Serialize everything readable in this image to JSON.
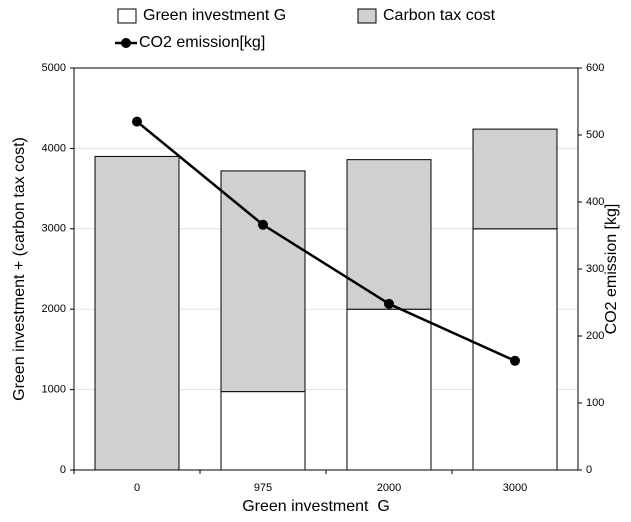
{
  "chart_data": {
    "type": "bar",
    "stacked": true,
    "x_label": "Green investment  G",
    "y_label": "Green investment + (carbon tax cost)",
    "y2_label": "CO2 emission [kg]",
    "categories": [
      "0",
      "975",
      "2000",
      "3000"
    ],
    "series": [
      {
        "name": "Green investment G",
        "color": "#ffffff",
        "values": [
          0,
          975,
          2000,
          3000
        ]
      },
      {
        "name": "Carbon tax cost",
        "color": "#d0d0d0",
        "values": [
          3900,
          2745,
          1860,
          1240
        ]
      },
      {
        "name": "CO2 emission[kg]",
        "color": "#000000",
        "type": "line",
        "axis": "y2",
        "values": [
          520,
          366,
          248,
          163
        ]
      }
    ],
    "ylim": [
      0,
      5000
    ],
    "yticks": [
      0,
      1000,
      2000,
      3000,
      4000,
      5000
    ],
    "y2lim": [
      0,
      600
    ],
    "y2ticks": [
      0,
      100,
      200,
      300,
      400,
      500,
      600
    ],
    "grid": true
  }
}
